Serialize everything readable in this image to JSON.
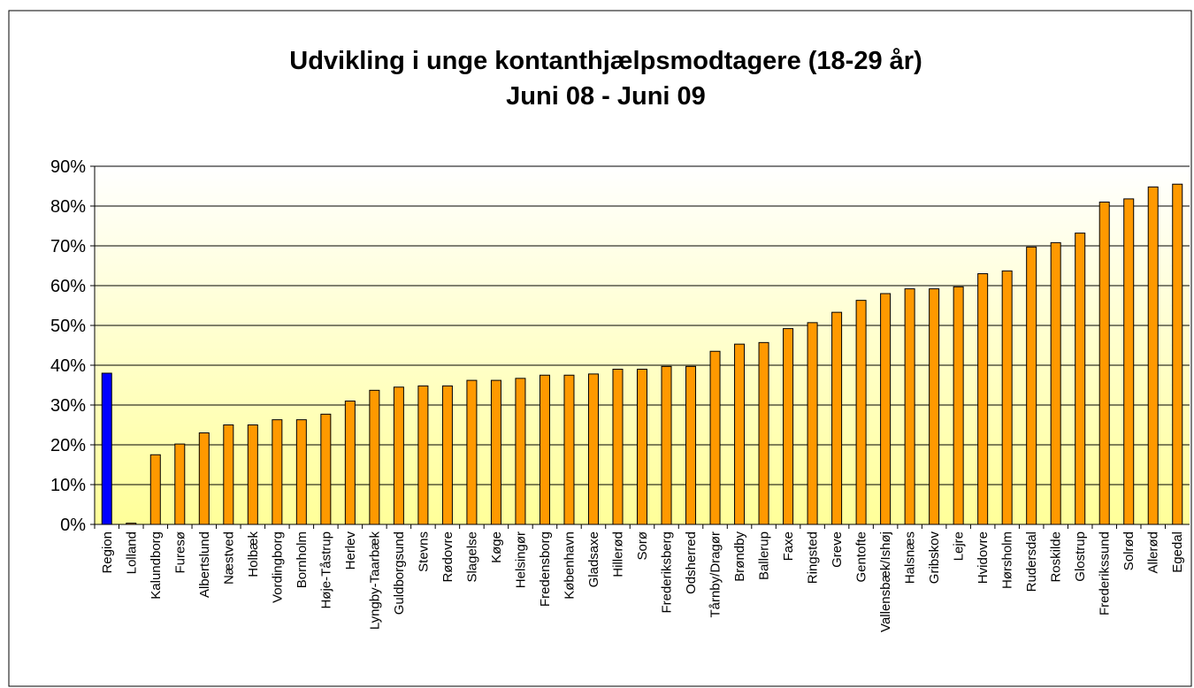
{
  "chart_data": {
    "type": "bar",
    "title": "Udvikling i unge kontanthjælpsmodtagere (18-29 år)",
    "subtitle": "Juni 08 - Juni 09",
    "categories": [
      "Region",
      "Lolland",
      "Kalundborg",
      "Furesø",
      "Albertslund",
      "Næstved",
      "Holbæk",
      "Vordingborg",
      "Bornholm",
      "Høje-Tåstrup",
      "Herlev",
      "Lyngby-Taarbæk",
      "Guldborgsund",
      "Stevns",
      "Rødovre",
      "Slagelse",
      "Køge",
      "Helsingør",
      "Fredensborg",
      "København",
      "Gladsaxe",
      "Hillerød",
      "Sorø",
      "Frederiksberg",
      "Odsherred",
      "Tårnby/Dragør",
      "Brøndby",
      "Ballerup",
      "Faxe",
      "Ringsted",
      "Greve",
      "Gentofte",
      "Vallensbæk/Ishøj",
      "Halsnæs",
      "Gribskov",
      "Lejre",
      "Hvidovre",
      "Hørsholm",
      "Rudersdal",
      "Roskilde",
      "Glostrup",
      "Frederikssund",
      "Solrød",
      "Allerød",
      "Egedal"
    ],
    "values": [
      38,
      0.3,
      17.5,
      20.2,
      23,
      25,
      25,
      26.3,
      26.3,
      27.7,
      31,
      33.7,
      34.5,
      34.8,
      34.8,
      36.2,
      36.2,
      36.7,
      37.5,
      37.5,
      37.8,
      39,
      39,
      39.7,
      39.7,
      43.5,
      45.3,
      45.7,
      49.2,
      50.7,
      53.3,
      56.3,
      58,
      59.2,
      59.2,
      59.7,
      63,
      63.7,
      69.7,
      70.8,
      73.2,
      81,
      81.8,
      84.8,
      85.5
    ],
    "colors": [
      "#0000ff",
      "#ff9900",
      "#ff9900",
      "#ff9900",
      "#ff9900",
      "#ff9900",
      "#ff9900",
      "#ff9900",
      "#ff9900",
      "#ff9900",
      "#ff9900",
      "#ff9900",
      "#ff9900",
      "#ff9900",
      "#ff9900",
      "#ff9900",
      "#ff9900",
      "#ff9900",
      "#ff9900",
      "#ff9900",
      "#ff9900",
      "#ff9900",
      "#ff9900",
      "#ff9900",
      "#ff9900",
      "#ff9900",
      "#ff9900",
      "#ff9900",
      "#ff9900",
      "#ff9900",
      "#ff9900",
      "#ff9900",
      "#ff9900",
      "#ff9900",
      "#ff9900",
      "#ff9900",
      "#ff9900",
      "#ff9900",
      "#ff9900",
      "#ff9900",
      "#ff9900",
      "#ff9900",
      "#ff9900",
      "#ff9900",
      "#ff9900"
    ],
    "ylim": [
      0,
      90
    ],
    "yticks": [
      {
        "value": 0,
        "label": "0%"
      },
      {
        "value": 10,
        "label": "10%"
      },
      {
        "value": 20,
        "label": "20%"
      },
      {
        "value": 30,
        "label": "30%"
      },
      {
        "value": 40,
        "label": "40%"
      },
      {
        "value": 50,
        "label": "50%"
      },
      {
        "value": 60,
        "label": "60%"
      },
      {
        "value": 70,
        "label": "70%"
      },
      {
        "value": 80,
        "label": "80%"
      },
      {
        "value": 90,
        "label": "90%"
      }
    ],
    "grid": true
  }
}
